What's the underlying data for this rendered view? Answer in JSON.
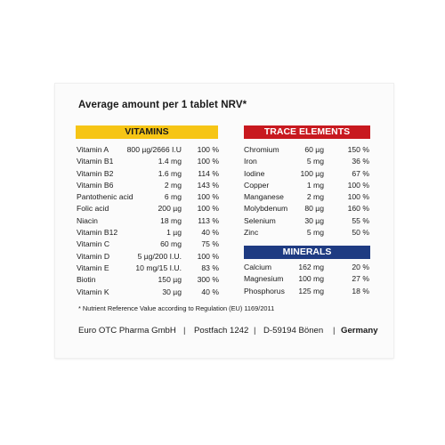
{
  "heading": "Average amount per 1 tablet NRV*",
  "vitamins": {
    "title": "VITAMINS",
    "rows": [
      {
        "name": "Vitamin A",
        "amount": "800 µg/2666 I.U",
        "nrv": "100 %"
      },
      {
        "name": "Vitamin B1",
        "amount": "1.4 mg",
        "nrv": "100 %"
      },
      {
        "name": "Vitamin B2",
        "amount": "1.6 mg",
        "nrv": "114 %"
      },
      {
        "name": "Vitamin B6",
        "amount": "2 mg",
        "nrv": "143 %"
      },
      {
        "name": "Pantothenic acid",
        "amount": "6 mg",
        "nrv": "100 %"
      },
      {
        "name": "Folic acid",
        "amount": "200 µg",
        "nrv": "100 %"
      },
      {
        "name": "Niacin",
        "amount": "18 mg",
        "nrv": "113 %"
      },
      {
        "name": "Vitamin B12",
        "amount": "1 µg",
        "nrv": "40 %"
      },
      {
        "name": "Vitamin C",
        "amount": "60 mg",
        "nrv": "75 %"
      },
      {
        "name": "Vitamin D",
        "amount": "5 µg/200 I.U.",
        "nrv": "100 %"
      },
      {
        "name": "Vitamin E",
        "amount": "10 mg/15 I.U.",
        "nrv": "83 %"
      },
      {
        "name": "Biotin",
        "amount": "150 µg",
        "nrv": "300 %"
      },
      {
        "name": "Vitamin K",
        "amount": "30 µg",
        "nrv": "40 %"
      }
    ]
  },
  "trace": {
    "title": "TRACE ELEMENTS",
    "rows": [
      {
        "name": "Chromium",
        "amount": "60 µg",
        "nrv": "150 %"
      },
      {
        "name": "Iron",
        "amount": "5 mg",
        "nrv": "36 %"
      },
      {
        "name": "Iodine",
        "amount": "100 µg",
        "nrv": "67 %"
      },
      {
        "name": "Copper",
        "amount": "1 mg",
        "nrv": "100 %"
      },
      {
        "name": "Manganese",
        "amount": "2 mg",
        "nrv": "100 %"
      },
      {
        "name": "Molybdenum",
        "amount": "80 µg",
        "nrv": "160 %"
      },
      {
        "name": "Selenium",
        "amount": "30 µg",
        "nrv": "55 %"
      },
      {
        "name": "Zinc",
        "amount": "5 mg",
        "nrv": "50 %"
      }
    ]
  },
  "minerals": {
    "title": "MINERALS",
    "rows": [
      {
        "name": "Calcium",
        "amount": "162 mg",
        "nrv": "20 %"
      },
      {
        "name": "Magnesium",
        "amount": "100 mg",
        "nrv": "27 %"
      },
      {
        "name": "Phosphorus",
        "amount": "125 mg",
        "nrv": "18 %"
      }
    ]
  },
  "footnote": "*  Nutrient Reference Value according to Regulation (EU) 1169/2011",
  "address": {
    "company": "Euro OTC Pharma GmbH",
    "separator": "|",
    "postbox": "Postfach 1242",
    "city": "D-59194 Bönen",
    "country": "Germany"
  },
  "colors": {
    "vitamins_band": "#f6c515",
    "trace_band": "#c8191f",
    "minerals_band": "#1e3b82"
  }
}
